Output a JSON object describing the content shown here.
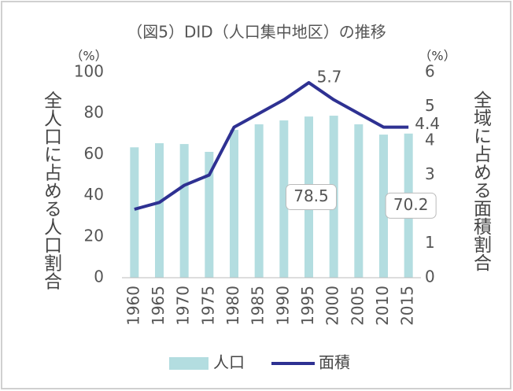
{
  "chart_data": {
    "type": "bar",
    "title": "（図5）DID（人口集中地区）の推移",
    "y_label": "全人口に占める人口割合",
    "y2_label": "全域に占める面積割合",
    "y_unit": "（%）",
    "y2_unit": "（%）",
    "categories": [
      "1960",
      "1965",
      "1970",
      "1975",
      "1980",
      "1985",
      "1990",
      "1995",
      "2000",
      "2005",
      "2010",
      "2015"
    ],
    "series": [
      {
        "name": "人口",
        "type": "bar",
        "color": "#b3dde0",
        "values": [
          63.5,
          65.5,
          65.1,
          61.3,
          72,
          74.7,
          76.6,
          78.5,
          78.9,
          74.7,
          69.7,
          70.2
        ],
        "value_labels": [
          null,
          null,
          null,
          null,
          null,
          null,
          null,
          "78.5",
          null,
          null,
          null,
          "70.2"
        ]
      },
      {
        "name": "面積",
        "type": "line",
        "axis": "y2",
        "color": "#2e3192",
        "values": [
          2.0,
          2.2,
          2.7,
          3.0,
          4.4,
          4.8,
          5.2,
          5.7,
          5.2,
          4.8,
          4.4,
          4.4
        ],
        "value_labels": [
          null,
          null,
          null,
          null,
          null,
          null,
          null,
          "5.7",
          null,
          null,
          null,
          "4.4"
        ]
      }
    ],
    "ylim": [
      0,
      100
    ],
    "yticks": [
      0,
      20,
      40,
      60,
      80,
      100
    ],
    "y2lim": [
      0,
      6
    ],
    "y2ticks": [
      0,
      1,
      2,
      3,
      4,
      5,
      6
    ],
    "legend": "bottom"
  }
}
